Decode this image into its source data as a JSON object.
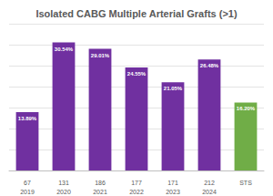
{
  "chart_data": {
    "type": "bar",
    "title": "Isolated CABG Multiple Arterial Grafts (>1)",
    "categories": [
      "67\n2019",
      "131\n2020",
      "186\n2021",
      "177\n2022",
      "171\n2023",
      "212\n2024",
      "STS"
    ],
    "values": [
      13.89,
      30.54,
      29.01,
      24.55,
      21.05,
      26.48,
      16.2
    ],
    "value_labels": [
      "13.89%",
      "30.54%",
      "29.01%",
      "24.55%",
      "21.05%",
      "26.48%",
      "16.20%"
    ],
    "colors": [
      "#7030a0",
      "#7030a0",
      "#7030a0",
      "#7030a0",
      "#7030a0",
      "#7030a0",
      "#70ad47"
    ],
    "data_labels": true,
    "ylim": [
      0,
      35
    ],
    "yticks": [
      0,
      5,
      10,
      15,
      20,
      25,
      30,
      35
    ],
    "grid": true,
    "tick_labels": "x"
  }
}
